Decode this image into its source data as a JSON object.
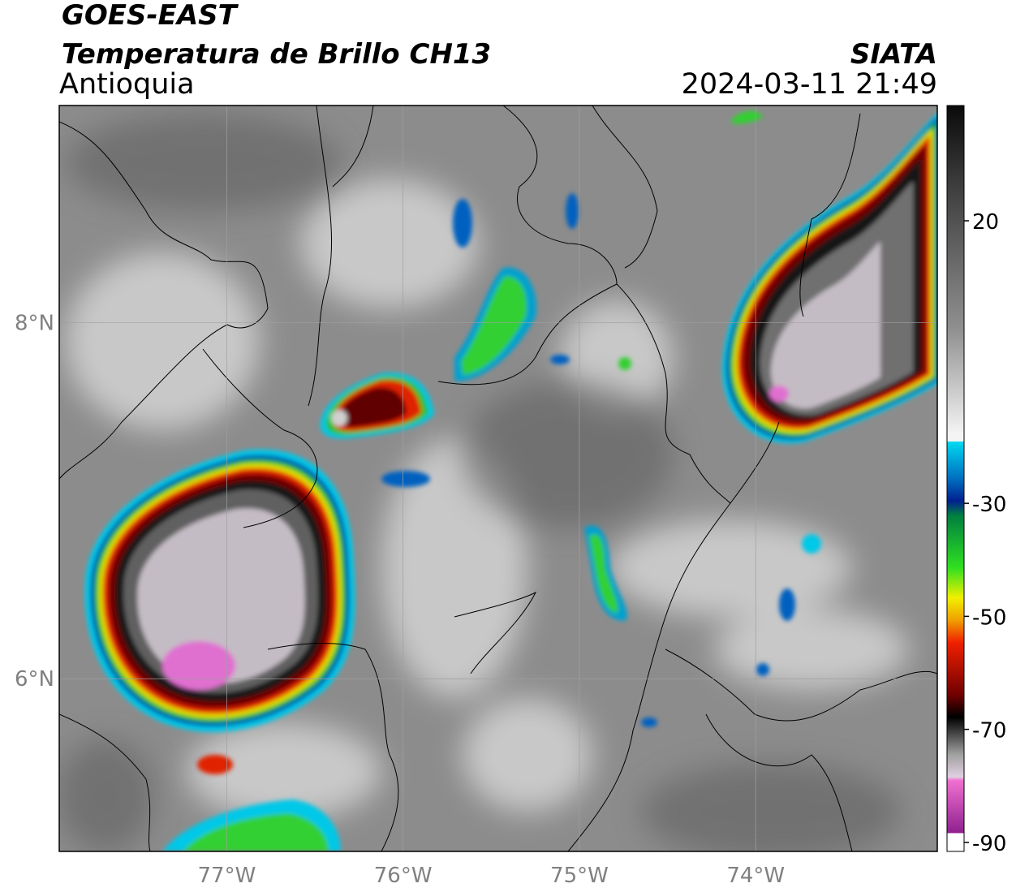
{
  "header": {
    "source": "GOES-EAST",
    "product": "Temperatura de Brillo CH13",
    "region": "Antioquia",
    "agency": "SIATA",
    "datetime": "2024-03-11 21:49"
  },
  "map": {
    "lonlim": [
      -77.95,
      -72.97
    ],
    "latlim": [
      5.03,
      9.22
    ],
    "lon_ticks": [
      {
        "value": -77,
        "label": "77°W"
      },
      {
        "value": -76,
        "label": "76°W"
      },
      {
        "value": -75,
        "label": "75°W"
      },
      {
        "value": -74,
        "label": "74°W"
      }
    ],
    "lat_ticks": [
      {
        "value": 6,
        "label": "6°N"
      },
      {
        "value": 8,
        "label": "8°N"
      }
    ],
    "grid": true
  },
  "colorbar": {
    "lim": [
      -91.6,
      40.4
    ],
    "ticks": [
      20,
      -30,
      -50,
      -70,
      -90
    ]
  }
}
